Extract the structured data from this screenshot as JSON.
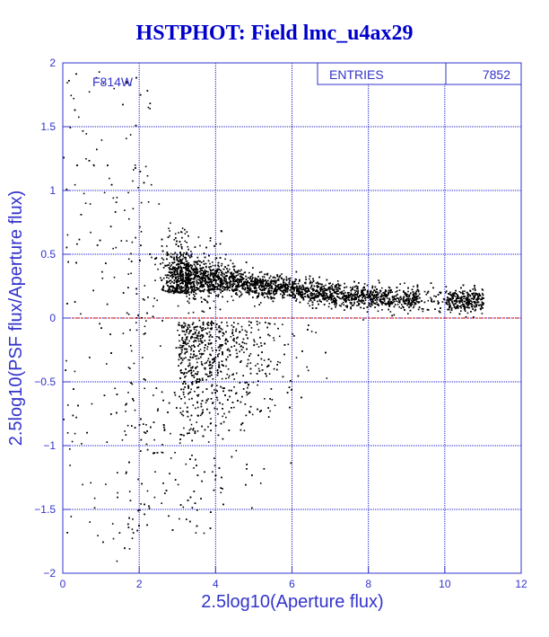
{
  "chart_data": {
    "type": "scatter",
    "title": "HSTPHOT: Field lmc_u4ax29",
    "xlabel": "2.5log10(Aperture flux)",
    "ylabel": "2.5log10(PSF flux/Aperture flux)",
    "xlim": [
      0,
      12
    ],
    "ylim": [
      -2,
      2
    ],
    "x_ticks": [
      0,
      2,
      4,
      6,
      8,
      10,
      12
    ],
    "x_tick_labels": [
      "0",
      "2",
      "4",
      "6",
      "8",
      "10",
      "12"
    ],
    "y_ticks": [
      -2,
      -1.5,
      -1,
      -0.5,
      0,
      0.5,
      1,
      1.5,
      2
    ],
    "y_tick_labels": [
      "−2",
      "−1.5",
      "−1",
      "−0.5",
      "0",
      "0.5",
      "1",
      "1.5",
      "2"
    ],
    "grid": true,
    "annotation": "F814W",
    "reference_line_y": 0,
    "stats_box": {
      "label": "ENTRIES",
      "value": "7852"
    },
    "n_points_drawn": 7852,
    "colors": {
      "title": "#0000cc",
      "axis": "#3333cc",
      "grid": "#1a1acc",
      "points": "#000000",
      "reference_line": "#cc0000",
      "background": "#ffffff"
    },
    "series": [
      {
        "points": [
          [
            3.3,
            0.34
          ],
          [
            3.6,
            0.28
          ],
          [
            4.0,
            0.25
          ],
          [
            4.5,
            0.23
          ],
          [
            5.0,
            0.21
          ],
          [
            5.5,
            0.2
          ],
          [
            6.0,
            0.19
          ],
          [
            6.5,
            0.18
          ],
          [
            7.0,
            0.18
          ],
          [
            7.5,
            0.18
          ],
          [
            8.0,
            0.18
          ],
          [
            8.5,
            0.19
          ],
          [
            9.0,
            0.19
          ],
          [
            9.5,
            0.19
          ],
          [
            10.2,
            0.2
          ],
          [
            10.6,
            0.19
          ],
          [
            10.9,
            0.18
          ],
          [
            3.2,
            0.48
          ],
          [
            3.1,
            0.55
          ],
          [
            2.9,
            0.62
          ],
          [
            2.8,
            0.75
          ],
          [
            2.5,
            0.9
          ],
          [
            2.3,
            1.05
          ],
          [
            2.2,
            1.12
          ],
          [
            2.0,
            0.72
          ],
          [
            1.8,
            0.6
          ],
          [
            1.6,
            0.85
          ],
          [
            1.4,
            0.95
          ],
          [
            1.2,
            1.1
          ],
          [
            1.0,
            1.4
          ],
          [
            0.8,
            1.2
          ],
          [
            0.6,
            1.45
          ],
          [
            0.4,
            1.58
          ],
          [
            0.2,
            1.75
          ],
          [
            0.1,
            1.85
          ],
          [
            0.3,
            1.05
          ],
          [
            0.7,
            0.9
          ],
          [
            1.3,
            0.55
          ],
          [
            1.7,
            0.35
          ],
          [
            2.4,
            0.3
          ],
          [
            3.0,
            0.1
          ],
          [
            3.4,
            0.05
          ],
          [
            3.8,
            -0.05
          ],
          [
            4.2,
            -0.12
          ],
          [
            3.9,
            -0.25
          ],
          [
            4.3,
            -0.3
          ],
          [
            3.7,
            -0.35
          ],
          [
            4.6,
            -0.2
          ],
          [
            5.0,
            -0.18
          ],
          [
            5.5,
            -0.15
          ],
          [
            6.0,
            -0.12
          ],
          [
            6.5,
            -0.1
          ],
          [
            3.2,
            -0.45
          ],
          [
            3.5,
            -0.6
          ],
          [
            3.1,
            -0.75
          ],
          [
            2.8,
            -0.9
          ],
          [
            2.6,
            -1.05
          ],
          [
            2.4,
            -1.2
          ],
          [
            2.2,
            -1.35
          ],
          [
            2.0,
            -1.5
          ],
          [
            1.8,
            -1.65
          ],
          [
            1.6,
            -1.8
          ],
          [
            1.4,
            -1.9
          ],
          [
            0.9,
            -1.7
          ],
          [
            0.5,
            -1.3
          ],
          [
            0.3,
            -0.9
          ],
          [
            0.2,
            -1.55
          ],
          [
            3.9,
            -1.2
          ],
          [
            3.5,
            -1.5
          ],
          [
            3.0,
            -1.3
          ]
        ]
      }
    ]
  }
}
